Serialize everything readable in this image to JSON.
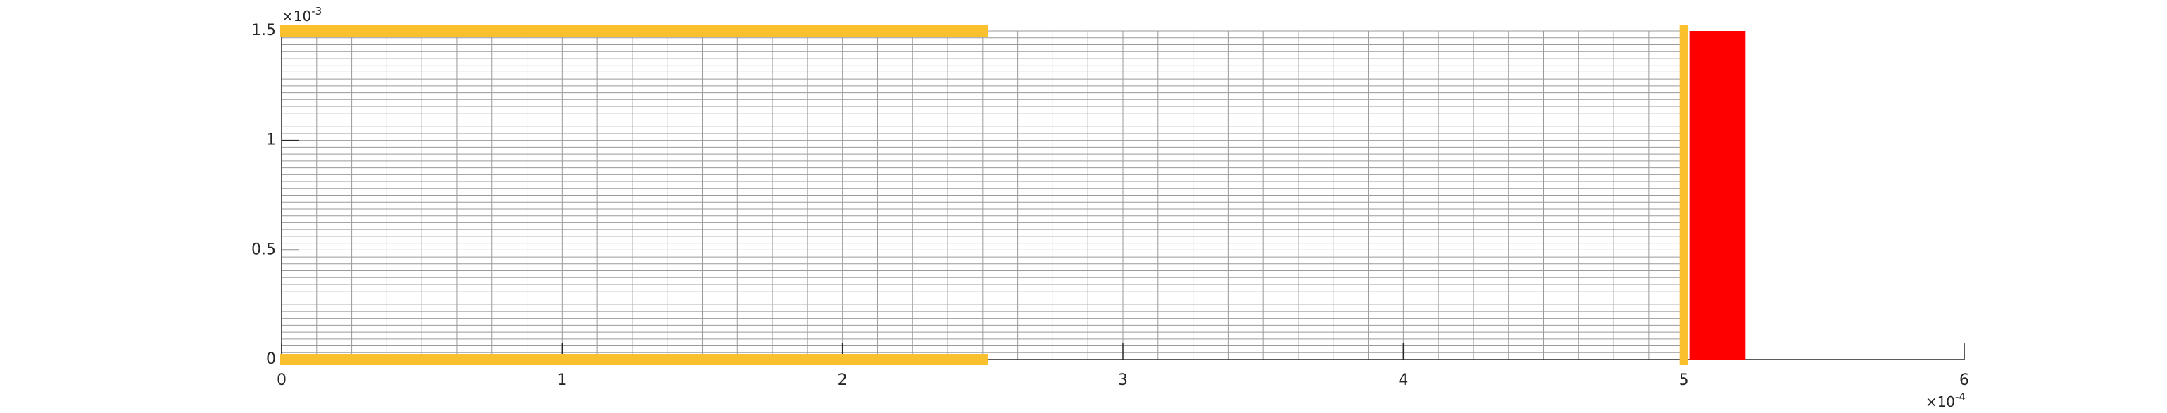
{
  "figure": {
    "x_axis": {
      "range": [
        0,
        0.0006
      ],
      "tick_values": [
        0,
        0.0001,
        0.0002,
        0.0003,
        0.0004,
        0.0005,
        0.0006
      ],
      "tick_labels": [
        "0",
        "1",
        "2",
        "3",
        "4",
        "5",
        "6"
      ],
      "multiplier_prefix": "×10",
      "multiplier_exponent": "-4"
    },
    "y_axis": {
      "range": [
        0,
        0.0015
      ],
      "tick_values": [
        0,
        0.0005,
        0.001,
        0.0015
      ],
      "tick_labels": [
        "0",
        "0.5",
        "1",
        "1.5"
      ],
      "multiplier_prefix": "×10",
      "multiplier_exponent": "-3"
    },
    "mesh": {
      "x_range": [
        0,
        0.0005
      ],
      "y_range": [
        0,
        0.0015
      ],
      "columns": 40,
      "rows": 48,
      "line_color": "#9a9a9a",
      "border_color": "#555555"
    },
    "boundary_strips": [
      {
        "name": "top-left-strip",
        "x_range": [
          0,
          0.000252
        ],
        "y": 0.0015,
        "color": "#fbc02d"
      },
      {
        "name": "bottom-left-strip",
        "x_range": [
          0,
          0.000252
        ],
        "y": 0,
        "color": "#fbc02d"
      },
      {
        "name": "right-vertical-strip",
        "x": 0.0005,
        "y_range": [
          0,
          0.0015
        ],
        "color": "#fbc02d"
      }
    ],
    "solid_region": {
      "x_range": [
        0.000502,
        0.000522
      ],
      "y_range": [
        0,
        0.0015
      ],
      "color": "#ff0000"
    }
  }
}
